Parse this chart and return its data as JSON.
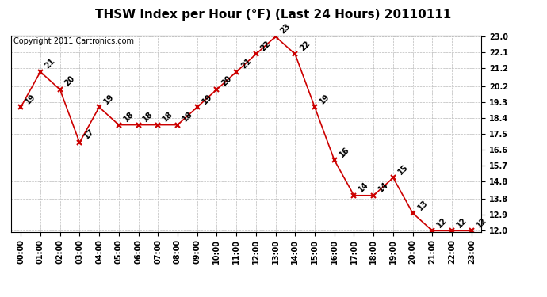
{
  "title": "THSW Index per Hour (°F) (Last 24 Hours) 20110111",
  "copyright": "Copyright 2011 Cartronics.com",
  "hours": [
    "00:00",
    "01:00",
    "02:00",
    "03:00",
    "04:00",
    "05:00",
    "06:00",
    "07:00",
    "08:00",
    "09:00",
    "10:00",
    "11:00",
    "12:00",
    "13:00",
    "14:00",
    "15:00",
    "16:00",
    "17:00",
    "18:00",
    "19:00",
    "20:00",
    "21:00",
    "22:00",
    "23:00"
  ],
  "values": [
    19,
    21,
    20,
    17,
    19,
    18,
    18,
    18,
    18,
    19,
    20,
    21,
    22,
    23,
    22,
    19,
    16,
    14,
    14,
    15,
    13,
    12,
    12,
    12
  ],
  "line_color": "#cc0000",
  "marker": "x",
  "marker_size": 5,
  "yticks": [
    12.0,
    12.9,
    13.8,
    14.8,
    15.7,
    16.6,
    17.5,
    18.4,
    19.3,
    20.2,
    21.2,
    22.1,
    23.0
  ],
  "ylim_min": 12.0,
  "ylim_max": 23.0,
  "background_color": "#ffffff",
  "grid_color": "#bbbbbb",
  "title_fontsize": 11,
  "label_fontsize": 7,
  "tick_fontsize": 7,
  "copyright_fontsize": 7
}
